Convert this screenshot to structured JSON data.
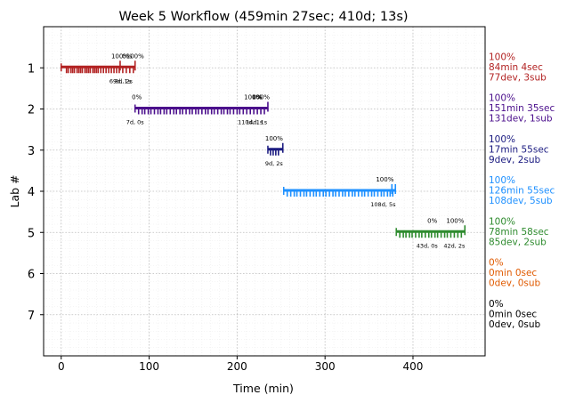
{
  "chart_data": {
    "type": "timeline",
    "title": "Week 5 Workflow (459min 27sec; 410d; 13s)",
    "xlabel": "Time (min)",
    "ylabel": "Lab #",
    "xlim": [
      -20,
      482
    ],
    "ylim": [
      8,
      0
    ],
    "xticks": [
      0,
      100,
      200,
      300,
      400
    ],
    "yticks": [
      1,
      2,
      3,
      4,
      5,
      6,
      7
    ],
    "grid": true,
    "lanes": [
      {
        "lab": 1,
        "color": "#b22222",
        "start": 0,
        "end": 84,
        "ticks": [
          6,
          8,
          11,
          13,
          15,
          18,
          20,
          22,
          24,
          27,
          29,
          31,
          33,
          36,
          38,
          40,
          42,
          45,
          48,
          51,
          54,
          57,
          60,
          63,
          66,
          70,
          74,
          78,
          82
        ],
        "markers": [
          67,
          84
        ],
        "pct_labels": [
          {
            "x": 67,
            "text": "100%"
          },
          {
            "x": 84,
            "text": "100%"
          },
          {
            "x": 75,
            "text": "0%"
          }
        ],
        "sub_labels": [
          {
            "x": 67,
            "text": "69d, 1s"
          },
          {
            "x": 71,
            "text": "8d, 2s"
          }
        ],
        "summary": [
          "100%",
          "84min 4sec",
          "77dev, 3sub"
        ]
      },
      {
        "lab": 2,
        "color": "#4b0f8c",
        "start": 84,
        "end": 235,
        "ticks": [
          88,
          92,
          95,
          99,
          102,
          106,
          110,
          113,
          117,
          120,
          124,
          128,
          131,
          135,
          138,
          142,
          146,
          149,
          153,
          156,
          160,
          164,
          167,
          171,
          174,
          178,
          182,
          185,
          189,
          192,
          196,
          200,
          203,
          207,
          211,
          215,
          219,
          223,
          227,
          231
        ],
        "markers": [
          235
        ],
        "pct_labels": [
          {
            "x": 86,
            "text": "0%"
          },
          {
            "x": 218,
            "text": "100%"
          },
          {
            "x": 223,
            "text": "0%"
          },
          {
            "x": 227,
            "text": "100%"
          }
        ],
        "sub_labels": [
          {
            "x": 84,
            "text": "7d, 0s"
          },
          {
            "x": 215,
            "text": "110d, 1s"
          },
          {
            "x": 222,
            "text": "14d, 1s"
          }
        ],
        "summary": [
          "100%",
          "151min 35sec",
          "131dev, 1sub"
        ]
      },
      {
        "lab": 3,
        "color": "#1a1a80",
        "start": 235,
        "end": 252,
        "ticks": [
          238,
          241,
          244,
          247
        ],
        "markers": [
          252
        ],
        "pct_labels": [
          {
            "x": 242,
            "text": "100%"
          }
        ],
        "sub_labels": [
          {
            "x": 242,
            "text": "9d, 2s"
          }
        ],
        "summary": [
          "100%",
          "17min 55sec",
          "9dev, 2sub"
        ]
      },
      {
        "lab": 4,
        "color": "#1e90ff",
        "start": 253,
        "end": 380,
        "ticks": [
          257,
          261,
          265,
          268,
          272,
          276,
          279,
          283,
          287,
          290,
          294,
          298,
          301,
          305,
          309,
          312,
          316,
          320,
          323,
          327,
          331,
          334,
          338,
          342,
          345,
          349,
          353,
          356,
          360,
          364,
          367,
          371,
          374,
          377
        ],
        "markers": [
          376,
          380
        ],
        "pct_labels": [
          {
            "x": 368,
            "text": "100%"
          }
        ],
        "sub_labels": [
          {
            "x": 366,
            "text": "108d, 5s"
          }
        ],
        "summary": [
          "100%",
          "126min 55sec",
          "108dev, 5sub"
        ]
      },
      {
        "lab": 5,
        "color": "#2e8b2e",
        "start": 381,
        "end": 459,
        "ticks": [
          385,
          389,
          392,
          396,
          399,
          403,
          407,
          410,
          414,
          418,
          421,
          425,
          428,
          432,
          436,
          439,
          443,
          447,
          451,
          455
        ],
        "markers": [
          459
        ],
        "pct_labels": [
          {
            "x": 422,
            "text": "0%"
          },
          {
            "x": 448,
            "text": "100%"
          }
        ],
        "sub_labels": [
          {
            "x": 416,
            "text": "43d, 0s"
          },
          {
            "x": 447,
            "text": "42d, 2s"
          }
        ],
        "summary": [
          "100%",
          "78min 58sec",
          "85dev, 2sub"
        ]
      },
      {
        "lab": 6,
        "color": "#e05a00",
        "summary": [
          "0%",
          "0min 0sec",
          "0dev, 0sub"
        ]
      },
      {
        "lab": 7,
        "color": "#000000",
        "summary": [
          "0%",
          "0min 0sec",
          "0dev, 0sub"
        ]
      }
    ]
  }
}
